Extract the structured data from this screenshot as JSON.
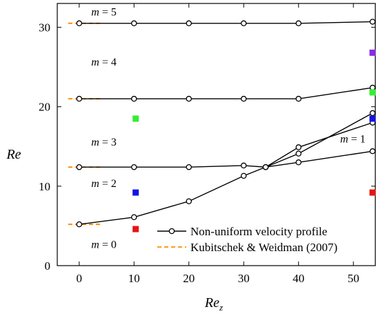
{
  "chart_data": {
    "type": "line",
    "xlabel": "Re",
    "xlabel_sub": "z",
    "ylabel": "Re",
    "xlim": [
      -4,
      54
    ],
    "ylim": [
      0,
      33
    ],
    "xticks": [
      "0",
      "10",
      "20",
      "30",
      "40",
      "50"
    ],
    "yticks": [
      "0",
      "10",
      "20",
      "30"
    ],
    "series": [
      {
        "name": "Non-uniform velocity profile",
        "curves": [
          {
            "mode": "m = 5",
            "x": [
              0,
              10,
              20,
              30,
              40,
              53.5
            ],
            "y": [
              30.5,
              30.5,
              30.5,
              30.5,
              30.5,
              30.7
            ]
          },
          {
            "mode": "m = 4",
            "x": [
              0,
              10,
              20,
              30,
              40,
              53.5
            ],
            "y": [
              21.0,
              21.0,
              21.0,
              21.0,
              21.0,
              22.4
            ]
          },
          {
            "mode": "m = 3",
            "x": [
              0,
              10,
              20,
              30,
              34,
              40,
              53.5
            ],
            "y": [
              12.4,
              12.4,
              12.4,
              12.6,
              12.4,
              13.0,
              14.4
            ]
          },
          {
            "mode": "m = 1",
            "x": [
              34,
              40,
              53.5
            ],
            "y": [
              12.4,
              14.1,
              19.2
            ]
          },
          {
            "mode": "m = 2",
            "x": [
              0,
              10,
              20,
              30,
              34,
              40,
              53.5
            ],
            "y": [
              5.2,
              6.1,
              8.1,
              11.3,
              12.4,
              14.9,
              18.0
            ]
          }
        ]
      },
      {
        "name": "Kubitschek & Weidman (2007)",
        "style": "dashed",
        "segments": [
          {
            "x": [
              -2,
              4
            ],
            "y": [
              30.5,
              30.5
            ]
          },
          {
            "x": [
              -2,
              4
            ],
            "y": [
              21.0,
              21.0
            ]
          },
          {
            "x": [
              -2,
              4
            ],
            "y": [
              12.4,
              12.4
            ]
          },
          {
            "x": [
              -2,
              4
            ],
            "y": [
              5.2,
              5.2
            ]
          }
        ]
      }
    ],
    "markers": [
      {
        "x": 10.3,
        "y": 18.5,
        "color": "#33ee33"
      },
      {
        "x": 10.3,
        "y": 9.2,
        "color": "#1414e6"
      },
      {
        "x": 10.3,
        "y": 4.6,
        "color": "#e61414"
      },
      {
        "x": 53.5,
        "y": 26.8,
        "color": "#8a2be2"
      },
      {
        "x": 53.5,
        "y": 21.8,
        "color": "#33ee33"
      },
      {
        "x": 53.5,
        "y": 18.5,
        "color": "#1414e6"
      },
      {
        "x": 53.5,
        "y": 9.2,
        "color": "#e61414"
      }
    ],
    "mode_labels": [
      {
        "text": "m = 5",
        "x": 2.2,
        "y": 31.5
      },
      {
        "text": "m = 4",
        "x": 2.2,
        "y": 25.2
      },
      {
        "text": "m = 3",
        "x": 2.2,
        "y": 15.1
      },
      {
        "text": "m = 2",
        "x": 2.2,
        "y": 9.9
      },
      {
        "text": "m = 1",
        "x": 47.6,
        "y": 15.5
      },
      {
        "text": "m = 0",
        "x": 2.2,
        "y": 2.2
      }
    ],
    "legend_position": "bottom-right",
    "colors": {
      "line": "#000000",
      "dashed": "#ff8c00"
    }
  }
}
